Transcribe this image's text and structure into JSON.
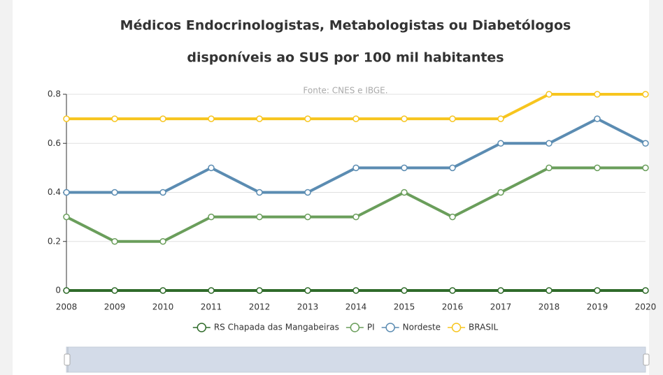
{
  "chart_data": {
    "type": "line",
    "title": [
      "Médicos Endocrinologistas, Metabologistas ou Diabetólogos",
      "disponíveis ao SUS por 100 mil habitantes"
    ],
    "subtitle": "Fonte: CNES e IBGE.",
    "x": [
      2008,
      2009,
      2010,
      2011,
      2012,
      2013,
      2014,
      2015,
      2016,
      2017,
      2018,
      2019,
      2020
    ],
    "xlim": [
      2008,
      2020
    ],
    "xticks": [
      2008,
      2009,
      2010,
      2011,
      2012,
      2013,
      2014,
      2015,
      2016,
      2017,
      2018,
      2019,
      2020
    ],
    "ylim": [
      0,
      0.8
    ],
    "yticks": [
      0,
      0.2,
      0.4,
      0.6,
      0.8
    ],
    "grid": true,
    "legend": "bottom",
    "series": [
      {
        "name": "RS Chapada das Mangabeiras",
        "color": "#2f6b2a",
        "values": [
          0,
          0,
          0,
          0,
          0,
          0,
          0,
          0,
          0,
          0,
          0,
          0,
          0
        ]
      },
      {
        "name": "PI",
        "color": "#6a9e5b",
        "values": [
          0.3,
          0.2,
          0.2,
          0.3,
          0.3,
          0.3,
          0.3,
          0.4,
          0.3,
          0.4,
          0.5,
          0.5,
          0.5
        ]
      },
      {
        "name": "Nordeste",
        "color": "#5b8cb2",
        "values": [
          0.4,
          0.4,
          0.4,
          0.5,
          0.4,
          0.4,
          0.5,
          0.5,
          0.5,
          0.6,
          0.6,
          0.7,
          0.6
        ]
      },
      {
        "name": "BRASIL",
        "color": "#f7c51e",
        "values": [
          0.7,
          0.7,
          0.7,
          0.7,
          0.7,
          0.7,
          0.7,
          0.7,
          0.7,
          0.7,
          0.8,
          0.8,
          0.8
        ]
      }
    ]
  }
}
